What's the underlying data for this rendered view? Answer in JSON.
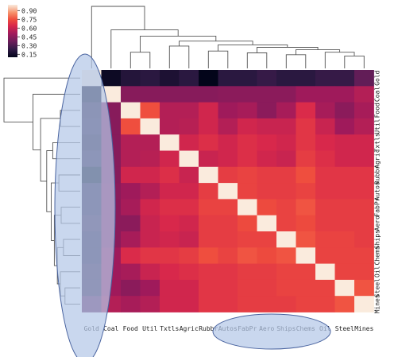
{
  "chart_data": {
    "type": "heatmap",
    "title": "",
    "labels": [
      "Gold",
      "Coal",
      "Food",
      "Util",
      "Txtls",
      "Agric",
      "Rubbr",
      "Autos",
      "FabPr",
      "Aero",
      "Ships",
      "Chems",
      "Oil",
      "Steel",
      "Mines"
    ],
    "values": [
      [
        1.0,
        0.13,
        0.2,
        0.22,
        0.18,
        0.22,
        0.1,
        0.22,
        0.22,
        0.25,
        0.22,
        0.22,
        0.25,
        0.25,
        0.35
      ],
      [
        0.13,
        1.0,
        0.44,
        0.44,
        0.44,
        0.44,
        0.44,
        0.45,
        0.45,
        0.45,
        0.45,
        0.5,
        0.5,
        0.5,
        0.55
      ],
      [
        0.2,
        0.44,
        1.0,
        0.75,
        0.55,
        0.55,
        0.62,
        0.5,
        0.52,
        0.45,
        0.52,
        0.65,
        0.52,
        0.45,
        0.52
      ],
      [
        0.22,
        0.44,
        0.75,
        1.0,
        0.55,
        0.56,
        0.62,
        0.55,
        0.62,
        0.6,
        0.6,
        0.68,
        0.6,
        0.5,
        0.55
      ],
      [
        0.18,
        0.44,
        0.55,
        0.55,
        1.0,
        0.62,
        0.66,
        0.62,
        0.66,
        0.64,
        0.62,
        0.68,
        0.64,
        0.62,
        0.62
      ],
      [
        0.22,
        0.44,
        0.55,
        0.56,
        0.62,
        1.0,
        0.6,
        0.62,
        0.66,
        0.62,
        0.6,
        0.7,
        0.66,
        0.62,
        0.62
      ],
      [
        0.1,
        0.44,
        0.62,
        0.62,
        0.66,
        0.6,
        1.0,
        0.7,
        0.72,
        0.7,
        0.7,
        0.75,
        0.68,
        0.68,
        0.68
      ],
      [
        0.22,
        0.45,
        0.5,
        0.55,
        0.62,
        0.62,
        0.7,
        1.0,
        0.72,
        0.7,
        0.7,
        0.72,
        0.68,
        0.68,
        0.68
      ],
      [
        0.22,
        0.45,
        0.52,
        0.62,
        0.66,
        0.66,
        0.72,
        0.72,
        1.0,
        0.74,
        0.72,
        0.76,
        0.7,
        0.7,
        0.7
      ],
      [
        0.25,
        0.45,
        0.45,
        0.6,
        0.64,
        0.62,
        0.7,
        0.7,
        0.74,
        1.0,
        0.72,
        0.74,
        0.7,
        0.7,
        0.7
      ],
      [
        0.22,
        0.45,
        0.52,
        0.6,
        0.62,
        0.6,
        0.7,
        0.7,
        0.72,
        0.72,
        1.0,
        0.76,
        0.72,
        0.72,
        0.7
      ],
      [
        0.22,
        0.5,
        0.65,
        0.68,
        0.68,
        0.7,
        0.75,
        0.72,
        0.76,
        0.74,
        0.76,
        1.0,
        0.72,
        0.72,
        0.72
      ],
      [
        0.25,
        0.5,
        0.52,
        0.6,
        0.64,
        0.66,
        0.68,
        0.68,
        0.7,
        0.7,
        0.72,
        0.72,
        1.0,
        0.72,
        0.72
      ],
      [
        0.25,
        0.5,
        0.45,
        0.5,
        0.62,
        0.62,
        0.68,
        0.68,
        0.7,
        0.7,
        0.72,
        0.72,
        0.72,
        1.0,
        0.76
      ],
      [
        0.35,
        0.55,
        0.52,
        0.55,
        0.62,
        0.62,
        0.68,
        0.68,
        0.7,
        0.7,
        0.7,
        0.72,
        0.72,
        0.76,
        1.0
      ]
    ],
    "colorbar": {
      "ticks": [
        "0.90",
        "0.75",
        "0.60",
        "0.45",
        "0.30",
        "0.15"
      ],
      "min": 0.1,
      "max": 1.0,
      "colormap": "rocket"
    },
    "dendrograms": {
      "row": "left",
      "column": "top"
    },
    "annotations": [
      {
        "shape": "ellipse",
        "target": "Gold column",
        "fill": "#b4c7e7"
      },
      {
        "shape": "ellipse",
        "target": "Autos–Oil x tick labels",
        "fill": "#b4c7e7"
      }
    ]
  }
}
